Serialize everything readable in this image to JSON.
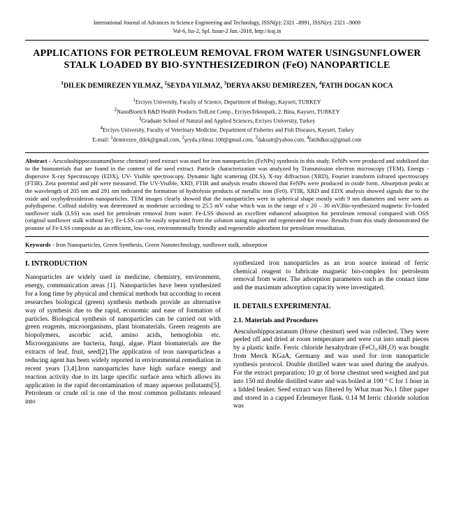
{
  "journal": {
    "line1": "International Journal of Advances in Science Engineering and Technology, ISSN(p): 2321 –8991, ISSN(e): 2321 –9009",
    "line2": "Vol-6, Iss-2, Spl. Issue-2 Jun.-2018, http://iraj.in"
  },
  "title": "APPLICATIONS FOR PETROLEUM REMOVAL FROM WATER USINGSUNFLOWER STALK LOADED BY BIO-SYNTHESIZEDIRON (FeO) NANOPARTICLE",
  "authors_html": "<span class='sup'>1</span>DILEK DEMIREZEN YILMAZ, <span class='sup'>2</span>SEYDA YILMAZ, <span class='sup'>3</span>DERYA AKSU DEMIREZEN, <span class='sup'>4</span>FATIH DOGAN KOCA",
  "affil_html": "<span class='sup'>1</span>Erciyes University, Faculty of Science, Department of Biology, Kayseri, TURKEY<br><span class='sup'>2</span>NanoBioetch R&amp;D Health Products TrdLmt Comp., ErciyesTeknopark, 2. Bina, Kayseri, TURKEY<br><span class='sup'>3</span>Graduate School of Natural and Applied Sciences, Erciyes University, Turkey<br><span class='sup'>4</span>Erciyes University, Faculty of Veterinary Medicine, Department of Fisheries and Fish Diseases, Kayseri, Turkey<br>E-mail: <span class='sup'>1</span>demirezen_dilek@gmail.com, <span class='sup'>2</span>şeyda.yilmaz.100@gmail.com, <span class='sup'>3</span>daksutr@yahoo.com, <span class='sup'>4</span>fatihdkoca@gmail.com",
  "abstract_label": "Abstract - ",
  "abstract": "Aesculushippocastanum(horse chestnut) seed extract was used for iron nanoparticles (FeNPs) synthesis in this study. FeNPs were produced and stabilized due to the biomaterials that are found in the content of the seed extract. Particle characterization was analyzed by Transmission electron microscopy (TEM), Energy - dispersive X-ray Spectroscopy (EDX), UV- Visible spectroscopy, Dynamic light scattering (DLS), X-ray diffraction (XRD), Fourier transform infrared spectroscopy (FTIR). Zeta potential and pH were measured. The UV-Visible, XRD, FTIR and analysis results showed that FeNPs were produced in oxide form. Absorption peaks at the wavelength of 205 nm and 291 nm indicated the formation of hydrolysis products of metallic iron (Fe0). FTIR, XRD and EDX analysis showed signals due to the oxide and oxyhydroxideiron nanoparticles. TEM images clearly showed that the nanoparticles were in spherical shape mostly with 9 nm diameters and were seen as polydisperse. Colloid stability was determined as moderate according to 25.5 mV value which was in the range of ± 20 – 30 mV.Bio-synthesized magnetic Fe-loaded sunflower stalk (LSS) was used for petroleum removal from water. Fe-LSS showed an excellent enhanced adsorption for petroleum removal compared with OSS (original sunflower stalk without Fe). Fe-LSS can be easily separated from the solution using magnet and regenerated for reuse. Results from this study demonstrated the promise of Fe-LSS composite as an efficient, low-cost, environmentally friendly and regenerable adsorbent for petroleum remediation.",
  "keywords_label": "Keywords - ",
  "keywords": "Iron Nanoparticles, Green Synthesis, Green Nanotechnology, sunflower stalk, adsorption",
  "sec1": "I. INTRODUCTION",
  "intro": "Nanoparticles are widely used in medicine, chemistry, environment, energy, communication areas [1]. Nanoparticles have been synthesized for a long time by physical and chemical methods but according to recent researches biological (green) synthesis methods provide an alternative way of synthesis due to the rapid, economic and ease of formation of particles. Biological synthesis of nanoparticles can be carried out with green reagents, microorganisms, plant biomaterials. Green reagents are biopolymers, ascorbic acid, amino acids, hemoglobin etc. Microorganisms are bacteria, fungi, algae. Plant biomaterials are the extracts of leaf, fruit, seed[2].The application of iron nanoparticleas a reducing agent has been widely reported in environmental remediation in recent years [3,4].Iron nanoparticles have high surface energy and reaction activity due to its large specific surface area which allows its application in the rapid decontamination of many aqueous pollutants[5]. Petroleum or crude oil is one of the most common pollutants released into",
  "intro_cont": "synthesized iron nanoparticles as an iron source instead of ferric chemical reagent to fabricate magnetic bio-complex for petroleum removal from water. The adsorption parameters such as the contact time and the maximum adsorption capacity were investigated.",
  "sec2": "II. DETAILS EXPERIMENTAL",
  "sub21": "2.1. Materials and Procedures",
  "materials": "Aesculushippocastanum (Horse chestnut) seed was collected. They were peeled off and dried at room temperature and were cut into small pieces by a plastic knife. Ferric chloride hexahydrate (FeCl₃.6H₂O) was bought from Merck KGaA, Germany and was used for iron nanoparticle synthesis protocol. Double distilled water was used during the analysis. For the extract preparation; 10 gr of horse chestnut seed weighed and put into 150 ml double distilled water and was boiled at 100 ° C for 1 hour in a lidded beaker. Seed extract was filtered by What man No.1 filter paper and stored in a capped Erlenmeyer flask. 0.14 M ferric chloride solution was"
}
